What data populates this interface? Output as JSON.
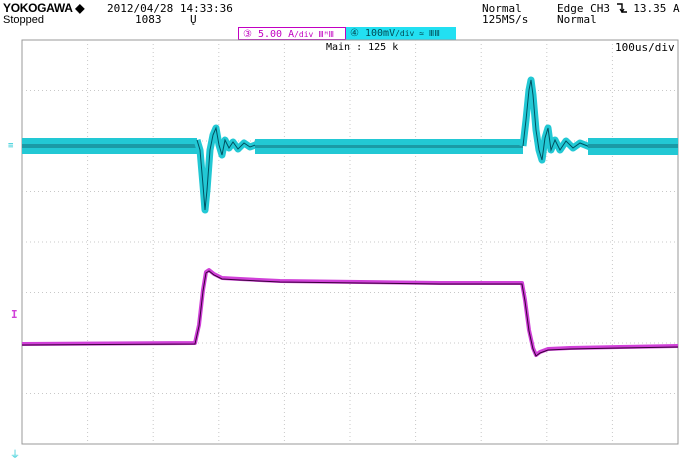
{
  "header": {
    "brand": "YOKOGAWA",
    "brand_symbol": "◆",
    "state": "Stopped",
    "datetime": "2012/04/28 14:33:36",
    "count": "1083",
    "mode_icon": "Ų",
    "acq_mode": "Normal",
    "sample_rate": "125MS/s",
    "trigger": "Edge CH3",
    "trigger_slope_icon": "falling-edge-icon",
    "trigger_level": "13.35 A",
    "trigger_mode": "Normal"
  },
  "channels": [
    {
      "id": "3",
      "label": "③  5.00 A",
      "unit_suffix": "/div ⅢᴹⅢ",
      "color": "#c200c2"
    },
    {
      "id": "4",
      "label": "④  100mV",
      "unit_suffix": "/div ≃ ⅢⅢ",
      "color": "#22c8d4"
    }
  ],
  "display": {
    "main_record": "Main : 125 k",
    "timebase": "100us/div",
    "marker_ch4": "≡",
    "marker_ch3": "I",
    "ground_marker": "⏚"
  },
  "colors": {
    "ch3": "#d040d8",
    "ch3_edge": "#3a003a",
    "ch4": "#22c8d4",
    "ch4_edge": "#005060",
    "grid": "#c8c8c8"
  },
  "waveforms": {
    "ch4_note": "square-edge coupled ringing; baseline band with positive and negative transients",
    "ch3_note": "current pulse step"
  }
}
